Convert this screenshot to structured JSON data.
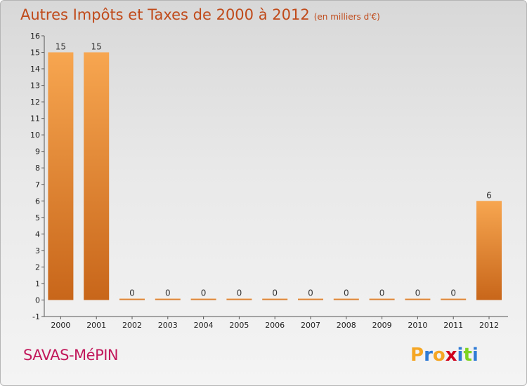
{
  "title": "Autres Impôts et Taxes de 2000 à 2012",
  "subtitle": "(en milliers d'€)",
  "commune": "SAVAS-MéPIN",
  "logo": {
    "letters": [
      "P",
      "r",
      "o",
      "x",
      "i",
      "t",
      "i"
    ],
    "colors": [
      "#f5a623",
      "#2e7bd6",
      "#f5a623",
      "#d0021b",
      "#2e7bd6",
      "#7ed321",
      "#2e7bd6"
    ]
  },
  "colors": {
    "bar_top": "#f7a650",
    "bar_bottom": "#c8661a",
    "title": "#c04a1a",
    "commune": "#c2185b"
  },
  "chart_data": {
    "type": "bar",
    "categories": [
      "2000",
      "2001",
      "2002",
      "2003",
      "2004",
      "2005",
      "2006",
      "2007",
      "2008",
      "2009",
      "2010",
      "2011",
      "2012"
    ],
    "values": [
      15,
      15,
      0,
      0,
      0,
      0,
      0,
      0,
      0,
      0,
      0,
      0,
      6
    ],
    "ylim": [
      -1,
      16
    ],
    "yticks": [
      -1,
      0,
      1,
      2,
      3,
      4,
      5,
      6,
      7,
      8,
      9,
      10,
      11,
      12,
      13,
      14,
      15,
      16
    ],
    "grid": false
  }
}
